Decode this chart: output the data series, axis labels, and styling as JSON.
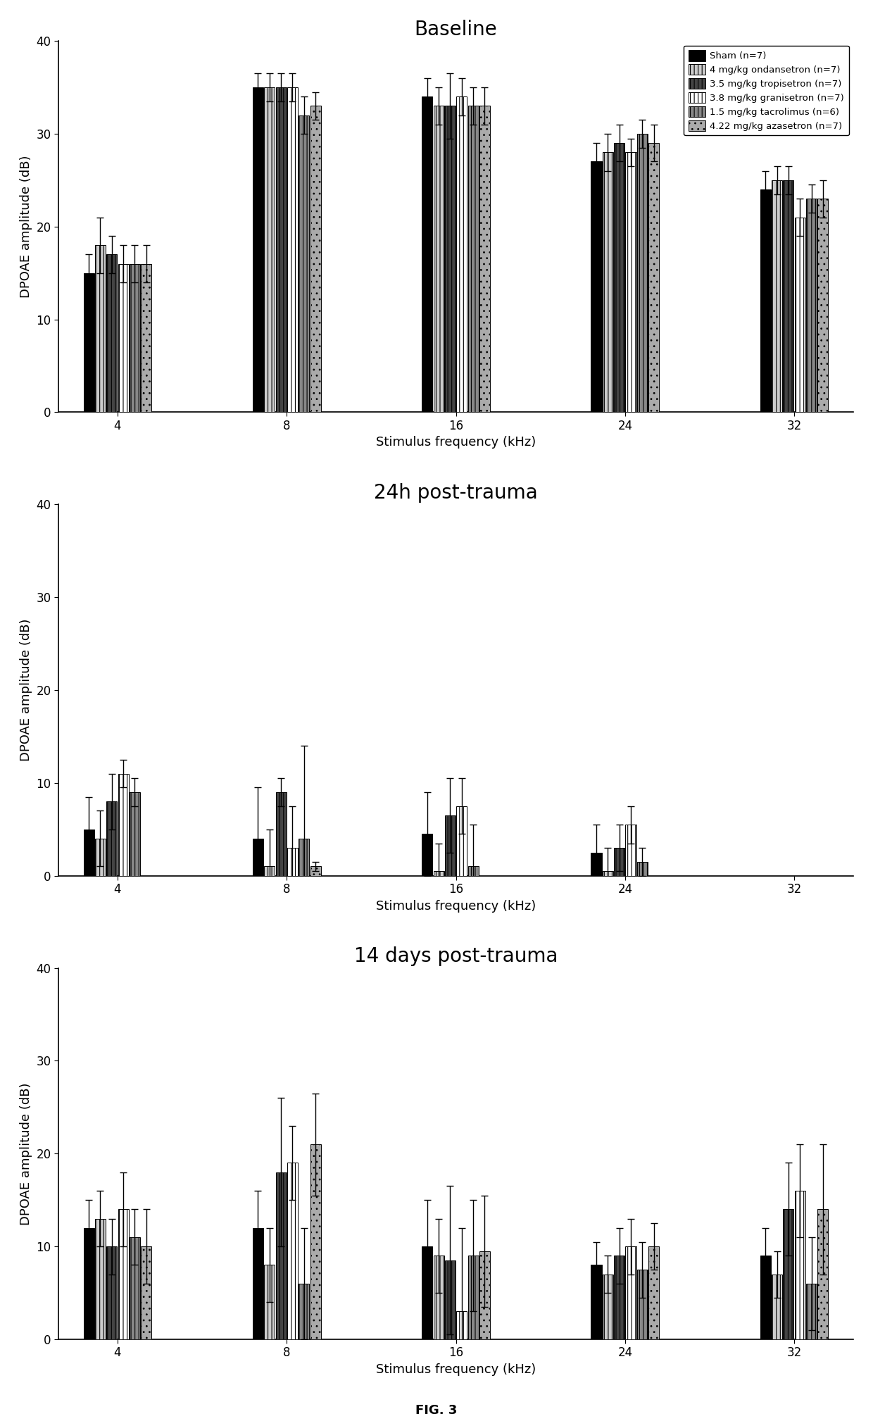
{
  "title1": "Baseline",
  "title2": "24h post-trauma",
  "title3": "14 days post-trauma",
  "xlabel": "Stimulus frequency (kHz)",
  "ylabel": "DPOAE amplitude (dB)",
  "fig_label": "FIG. 3",
  "frequencies": [
    4,
    8,
    16,
    24,
    32
  ],
  "legend_labels": [
    "Sham (n=7)",
    "4 mg/kg ondansetron (n=7)",
    "3.5 mg/kg tropisetron (n=7)",
    "3.8 mg/kg granisetron (n=7)",
    "1.5 mg/kg tacrolimus (n=6)",
    "4.22 mg/kg azasetron (n=7)"
  ],
  "bar_colors": [
    "#000000",
    "#cccccc",
    "#444444",
    "#ffffff",
    "#888888",
    "#aaaaaa"
  ],
  "bar_hatches": [
    "",
    "|||",
    "|||",
    "|||",
    "|||",
    ".."
  ],
  "bar_edgecolors": [
    "black",
    "black",
    "black",
    "black",
    "black",
    "black"
  ],
  "baseline_means": [
    [
      15,
      35,
      34,
      27,
      24
    ],
    [
      18,
      35,
      33,
      28,
      25
    ],
    [
      17,
      35,
      33,
      29,
      25
    ],
    [
      16,
      35,
      34,
      28,
      21
    ],
    [
      16,
      32,
      33,
      30,
      23
    ],
    [
      16,
      33,
      33,
      29,
      23
    ]
  ],
  "baseline_errs": [
    [
      2,
      1.5,
      2,
      2,
      2
    ],
    [
      3,
      1.5,
      2,
      2,
      1.5
    ],
    [
      2,
      1.5,
      3.5,
      2,
      1.5
    ],
    [
      2,
      1.5,
      2,
      1.5,
      2
    ],
    [
      2,
      2,
      2,
      1.5,
      1.5
    ],
    [
      2,
      1.5,
      2,
      2,
      2
    ]
  ],
  "post24_means": [
    [
      5,
      4,
      4.5,
      2.5,
      0
    ],
    [
      4,
      1,
      0.5,
      0.5,
      0
    ],
    [
      8,
      9,
      6.5,
      3,
      0
    ],
    [
      11,
      3,
      7.5,
      5.5,
      0
    ],
    [
      9,
      4,
      1,
      1.5,
      0
    ],
    [
      0,
      1,
      0,
      0,
      0
    ]
  ],
  "post24_errs": [
    [
      3.5,
      5.5,
      4.5,
      3,
      0
    ],
    [
      3,
      4,
      3,
      2.5,
      0
    ],
    [
      3,
      1.5,
      4,
      2.5,
      0
    ],
    [
      1.5,
      4.5,
      3,
      2,
      0
    ],
    [
      1.5,
      10,
      4.5,
      1.5,
      0
    ],
    [
      0,
      0.5,
      0,
      0,
      0
    ]
  ],
  "post14_means": [
    [
      12,
      12,
      10,
      8,
      9
    ],
    [
      13,
      8,
      9,
      7,
      7
    ],
    [
      10,
      18,
      8.5,
      9,
      14
    ],
    [
      14,
      19,
      3,
      10,
      16
    ],
    [
      11,
      6,
      9,
      7.5,
      6
    ],
    [
      10,
      21,
      9.5,
      10,
      14
    ]
  ],
  "post14_errs": [
    [
      3,
      4,
      5,
      2.5,
      3
    ],
    [
      3,
      4,
      4,
      2,
      2.5
    ],
    [
      3,
      8,
      8,
      3,
      5
    ],
    [
      4,
      4,
      9,
      3,
      5
    ],
    [
      3,
      6,
      6,
      3,
      5
    ],
    [
      4,
      5.5,
      6,
      2.5,
      7
    ]
  ],
  "ylim": [
    0,
    40
  ],
  "yticks": [
    0,
    10,
    20,
    30,
    40
  ],
  "title_fontsize": 20,
  "axis_label_fontsize": 13,
  "tick_fontsize": 12,
  "legend_fontsize": 9.5
}
